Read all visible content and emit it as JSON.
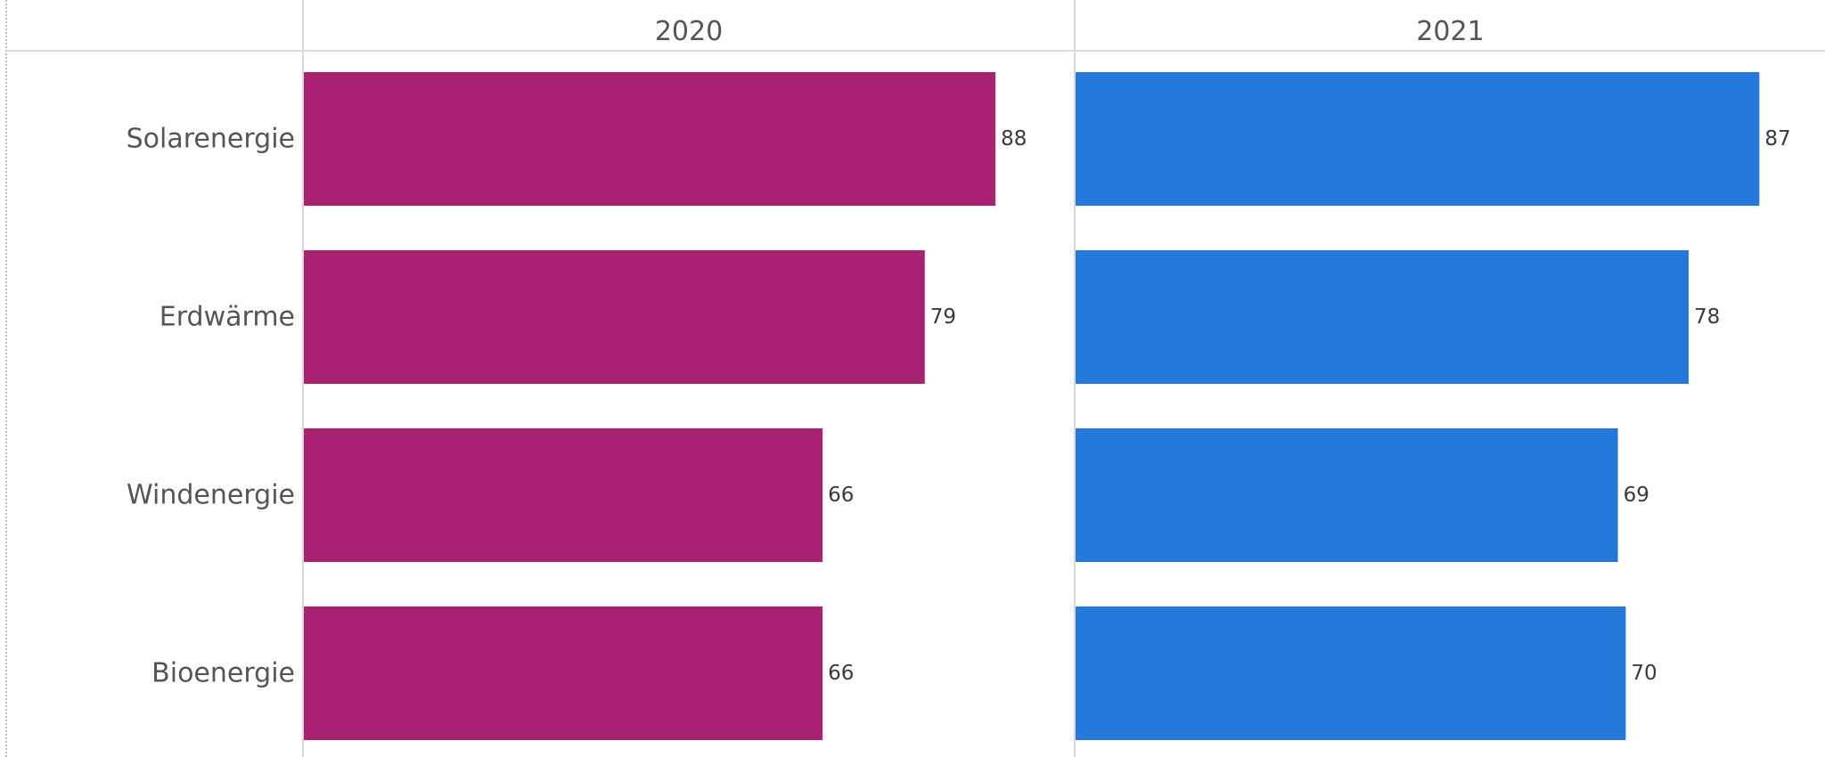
{
  "chart_data": {
    "type": "bar",
    "orientation": "horizontal",
    "title": "",
    "xlabel": "",
    "ylabel": "",
    "categories": [
      "Solarenergie",
      "Erdwärme",
      "Windenergie",
      "Bioenergie"
    ],
    "series": [
      {
        "name": "2020",
        "color": "#A82173",
        "values": [
          88,
          79,
          66,
          66
        ]
      },
      {
        "name": "2021",
        "color": "#2378DA",
        "values": [
          87,
          78,
          69,
          70
        ]
      }
    ],
    "xlim": [
      0,
      100
    ],
    "grid": false,
    "legend": "none",
    "data_labels": true
  },
  "colors": {
    "label_text": "#555555",
    "value_text": "#3a3a3a",
    "divider": "#d9d9d9",
    "frame": "#bbbbbb"
  }
}
